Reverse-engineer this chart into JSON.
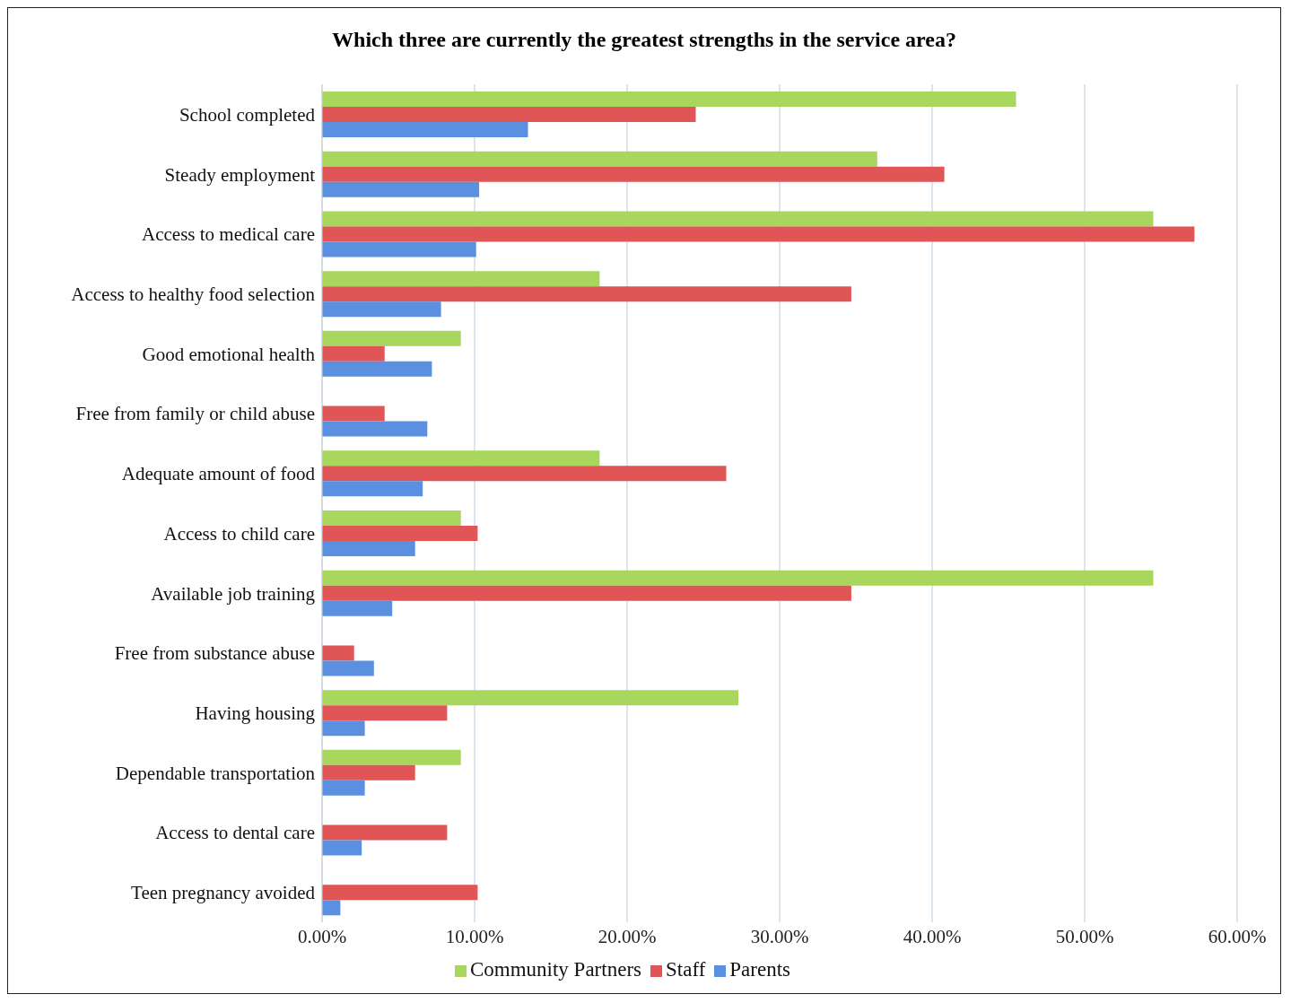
{
  "chart_data": {
    "type": "bar",
    "orientation": "horizontal",
    "title": "Which three are currently the greatest strengths in the service area?",
    "categories": [
      "School completed",
      "Steady employment",
      "Access to medical care",
      "Access to healthy food selection",
      "Good emotional health",
      "Free from family or child abuse",
      "Adequate amount of food",
      "Access to child care",
      "Available job training",
      "Free from substance abuse",
      "Having housing",
      "Dependable transportation",
      "Access to dental care",
      "Teen pregnancy avoided"
    ],
    "series": [
      {
        "name": "Community Partners",
        "color": "#a9d65c",
        "values": [
          45.5,
          36.4,
          54.5,
          18.2,
          9.1,
          0,
          18.2,
          9.1,
          54.5,
          0,
          27.3,
          9.1,
          0,
          0
        ]
      },
      {
        "name": "Staff",
        "color": "#e05555",
        "values": [
          24.5,
          40.8,
          57.2,
          34.7,
          4.1,
          4.1,
          26.5,
          10.2,
          34.7,
          2.1,
          8.2,
          6.1,
          8.2,
          10.2
        ]
      },
      {
        "name": "Parents",
        "color": "#5b8fe0",
        "values": [
          13.5,
          10.3,
          10.1,
          7.8,
          7.2,
          6.9,
          6.6,
          6.1,
          4.6,
          3.4,
          2.8,
          2.8,
          2.6,
          1.2
        ]
      }
    ],
    "xlim": [
      0,
      60
    ],
    "xticks": [
      {
        "value": 0,
        "label": "0.00%"
      },
      {
        "value": 10,
        "label": "10.00%"
      },
      {
        "value": 20,
        "label": "20.00%"
      },
      {
        "value": 30,
        "label": "30.00%"
      },
      {
        "value": 40,
        "label": "40.00%"
      },
      {
        "value": 50,
        "label": "50.00%"
      },
      {
        "value": 60,
        "label": "60.00%"
      }
    ],
    "grid": "x",
    "legend": "bottom"
  }
}
